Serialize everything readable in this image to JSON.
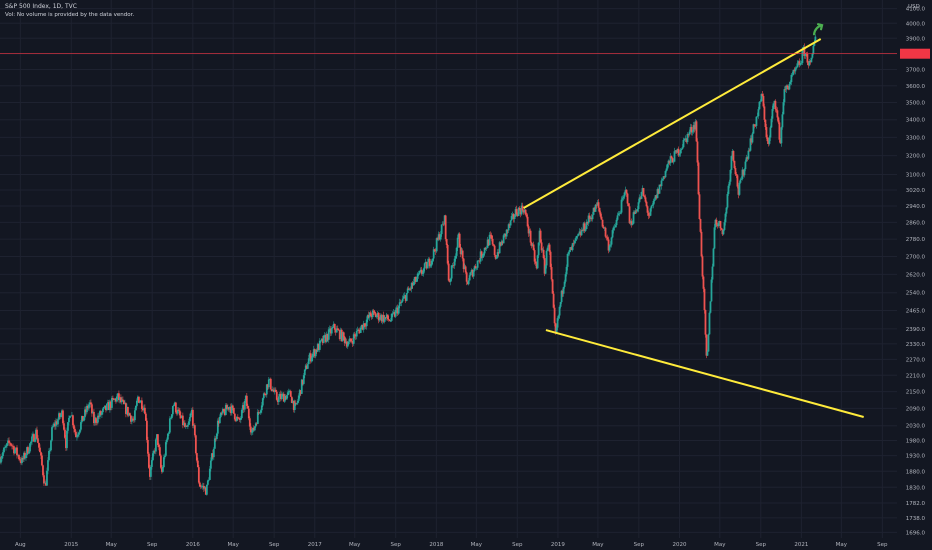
{
  "header": {
    "title": "S&P 500 Index, 1D, TVC",
    "volume_note": "Vol: No volume is provided by the data vendor."
  },
  "colors": {
    "background": "#131722",
    "grid": "#1e2230",
    "up": "#26a69a",
    "down": "#ef5350",
    "trendline": "#ffeb3b",
    "arrow": "#4caf50",
    "price_line": "#f23645",
    "axis_text": "#b2b5be"
  },
  "icons": {
    "annotation": "arrow-up-right-icon"
  },
  "chart_data": {
    "type": "candlestick",
    "title": "S&P 500 Index, 1D, TVC",
    "currency": "USD",
    "y_axis": {
      "scale": "log",
      "range": [
        1680,
        4160
      ],
      "tick_labels": [
        "4100.0",
        "4000.0",
        "3900.0",
        "3800.0",
        "3700.0",
        "3600.0",
        "3500.0",
        "3400.0",
        "3300.0",
        "3200.0",
        "3100.0",
        "3020.0",
        "2940.0",
        "2860.0",
        "2780.0",
        "2700.0",
        "2620.0",
        "2540.0",
        "2465.0",
        "2390.0",
        "2330.0",
        "2270.0",
        "2210.0",
        "2150.0",
        "2090.0",
        "2030.0",
        "1980.0",
        "1930.0",
        "1880.0",
        "1830.0",
        "1782.0",
        "1738.0",
        "1696.0"
      ]
    },
    "x_axis": {
      "range": [
        "2014-06-01",
        "2021-10-15"
      ],
      "ticks": [
        {
          "date": "2014-08-01",
          "label": "Aug"
        },
        {
          "date": "2015-01-01",
          "label": "2015"
        },
        {
          "date": "2015-05-01",
          "label": "May"
        },
        {
          "date": "2015-09-01",
          "label": "Sep"
        },
        {
          "date": "2016-01-01",
          "label": "2016"
        },
        {
          "date": "2016-05-01",
          "label": "May"
        },
        {
          "date": "2016-09-01",
          "label": "Sep"
        },
        {
          "date": "2017-01-01",
          "label": "2017"
        },
        {
          "date": "2017-05-01",
          "label": "May"
        },
        {
          "date": "2017-09-01",
          "label": "Sep"
        },
        {
          "date": "2018-01-01",
          "label": "2018"
        },
        {
          "date": "2018-05-01",
          "label": "May"
        },
        {
          "date": "2018-09-01",
          "label": "Sep"
        },
        {
          "date": "2019-01-01",
          "label": "2019"
        },
        {
          "date": "2019-05-01",
          "label": "May"
        },
        {
          "date": "2019-09-01",
          "label": "Sep"
        },
        {
          "date": "2020-01-01",
          "label": "2020"
        },
        {
          "date": "2020-05-01",
          "label": "May"
        },
        {
          "date": "2020-09-01",
          "label": "Sep"
        },
        {
          "date": "2021-01-01",
          "label": "2021"
        },
        {
          "date": "2021-05-01",
          "label": "May"
        },
        {
          "date": "2021-09-01",
          "label": "Sep"
        }
      ]
    },
    "price_path": [
      [
        "2014-06-01",
        1925
      ],
      [
        "2014-07-01",
        1975
      ],
      [
        "2014-08-06",
        1910
      ],
      [
        "2014-09-18",
        2010
      ],
      [
        "2014-10-15",
        1830
      ],
      [
        "2014-11-05",
        2020
      ],
      [
        "2014-12-05",
        2075
      ],
      [
        "2014-12-16",
        1970
      ],
      [
        "2014-12-29",
        2090
      ],
      [
        "2015-01-15",
        1995
      ],
      [
        "2015-02-25",
        2110
      ],
      [
        "2015-03-10",
        2045
      ],
      [
        "2015-05-20",
        2130
      ],
      [
        "2015-07-08",
        2045
      ],
      [
        "2015-07-20",
        2130
      ],
      [
        "2015-08-10",
        2090
      ],
      [
        "2015-08-24",
        1865
      ],
      [
        "2015-09-16",
        1995
      ],
      [
        "2015-09-29",
        1870
      ],
      [
        "2015-11-03",
        2110
      ],
      [
        "2015-12-14",
        2010
      ],
      [
        "2015-12-29",
        2080
      ],
      [
        "2016-01-20",
        1840
      ],
      [
        "2016-02-11",
        1820
      ],
      [
        "2016-03-18",
        2050
      ],
      [
        "2016-04-20",
        2100
      ],
      [
        "2016-05-19",
        2040
      ],
      [
        "2016-06-08",
        2120
      ],
      [
        "2016-06-27",
        2000
      ],
      [
        "2016-08-15",
        2190
      ],
      [
        "2016-09-09",
        2125
      ],
      [
        "2016-10-20",
        2140
      ],
      [
        "2016-11-04",
        2085
      ],
      [
        "2016-12-13",
        2270
      ],
      [
        "2017-02-28",
        2395
      ],
      [
        "2017-04-13",
        2330
      ],
      [
        "2017-06-20",
        2450
      ],
      [
        "2017-08-18",
        2425
      ],
      [
        "2017-10-15",
        2560
      ],
      [
        "2017-12-18",
        2690
      ],
      [
        "2018-01-26",
        2872
      ],
      [
        "2018-02-08",
        2580
      ],
      [
        "2018-03-09",
        2786
      ],
      [
        "2018-04-02",
        2581
      ],
      [
        "2018-06-12",
        2786
      ],
      [
        "2018-06-28",
        2700
      ],
      [
        "2018-08-29",
        2914
      ],
      [
        "2018-09-21",
        2930
      ],
      [
        "2018-10-29",
        2640
      ],
      [
        "2018-11-07",
        2813
      ],
      [
        "2018-11-23",
        2630
      ],
      [
        "2018-12-03",
        2790
      ],
      [
        "2018-12-24",
        2351
      ],
      [
        "2019-01-31",
        2704
      ],
      [
        "2019-04-30",
        2945
      ],
      [
        "2019-06-03",
        2744
      ],
      [
        "2019-07-26",
        3025
      ],
      [
        "2019-08-05",
        2844
      ],
      [
        "2019-09-12",
        3009
      ],
      [
        "2019-10-02",
        2887
      ],
      [
        "2019-11-27",
        3153
      ],
      [
        "2019-12-31",
        3230
      ],
      [
        "2020-02-19",
        3386
      ],
      [
        "2020-02-28",
        2954
      ],
      [
        "2020-03-23",
        2237
      ],
      [
        "2020-04-17",
        2875
      ],
      [
        "2020-05-13",
        2820
      ],
      [
        "2020-06-08",
        3232
      ],
      [
        "2020-06-26",
        3009
      ],
      [
        "2020-08-31",
        3500
      ],
      [
        "2020-09-02",
        3580
      ],
      [
        "2020-09-23",
        3237
      ],
      [
        "2020-10-12",
        3534
      ],
      [
        "2020-10-30",
        3270
      ],
      [
        "2020-11-09",
        3550
      ],
      [
        "2020-12-31",
        3756
      ],
      [
        "2021-01-08",
        3824
      ],
      [
        "2021-01-29",
        3714
      ],
      [
        "2021-02-12",
        3934
      ]
    ],
    "current_price_line": 3800,
    "annotations": {
      "upper_trendline": [
        [
          "2018-09-20",
          2930
        ],
        [
          "2021-02-28",
          3895
        ]
      ],
      "lower_trendline": [
        [
          "2018-11-26",
          2385
        ],
        [
          "2021-07-07",
          2060
        ]
      ],
      "arrow": "up-right"
    }
  }
}
